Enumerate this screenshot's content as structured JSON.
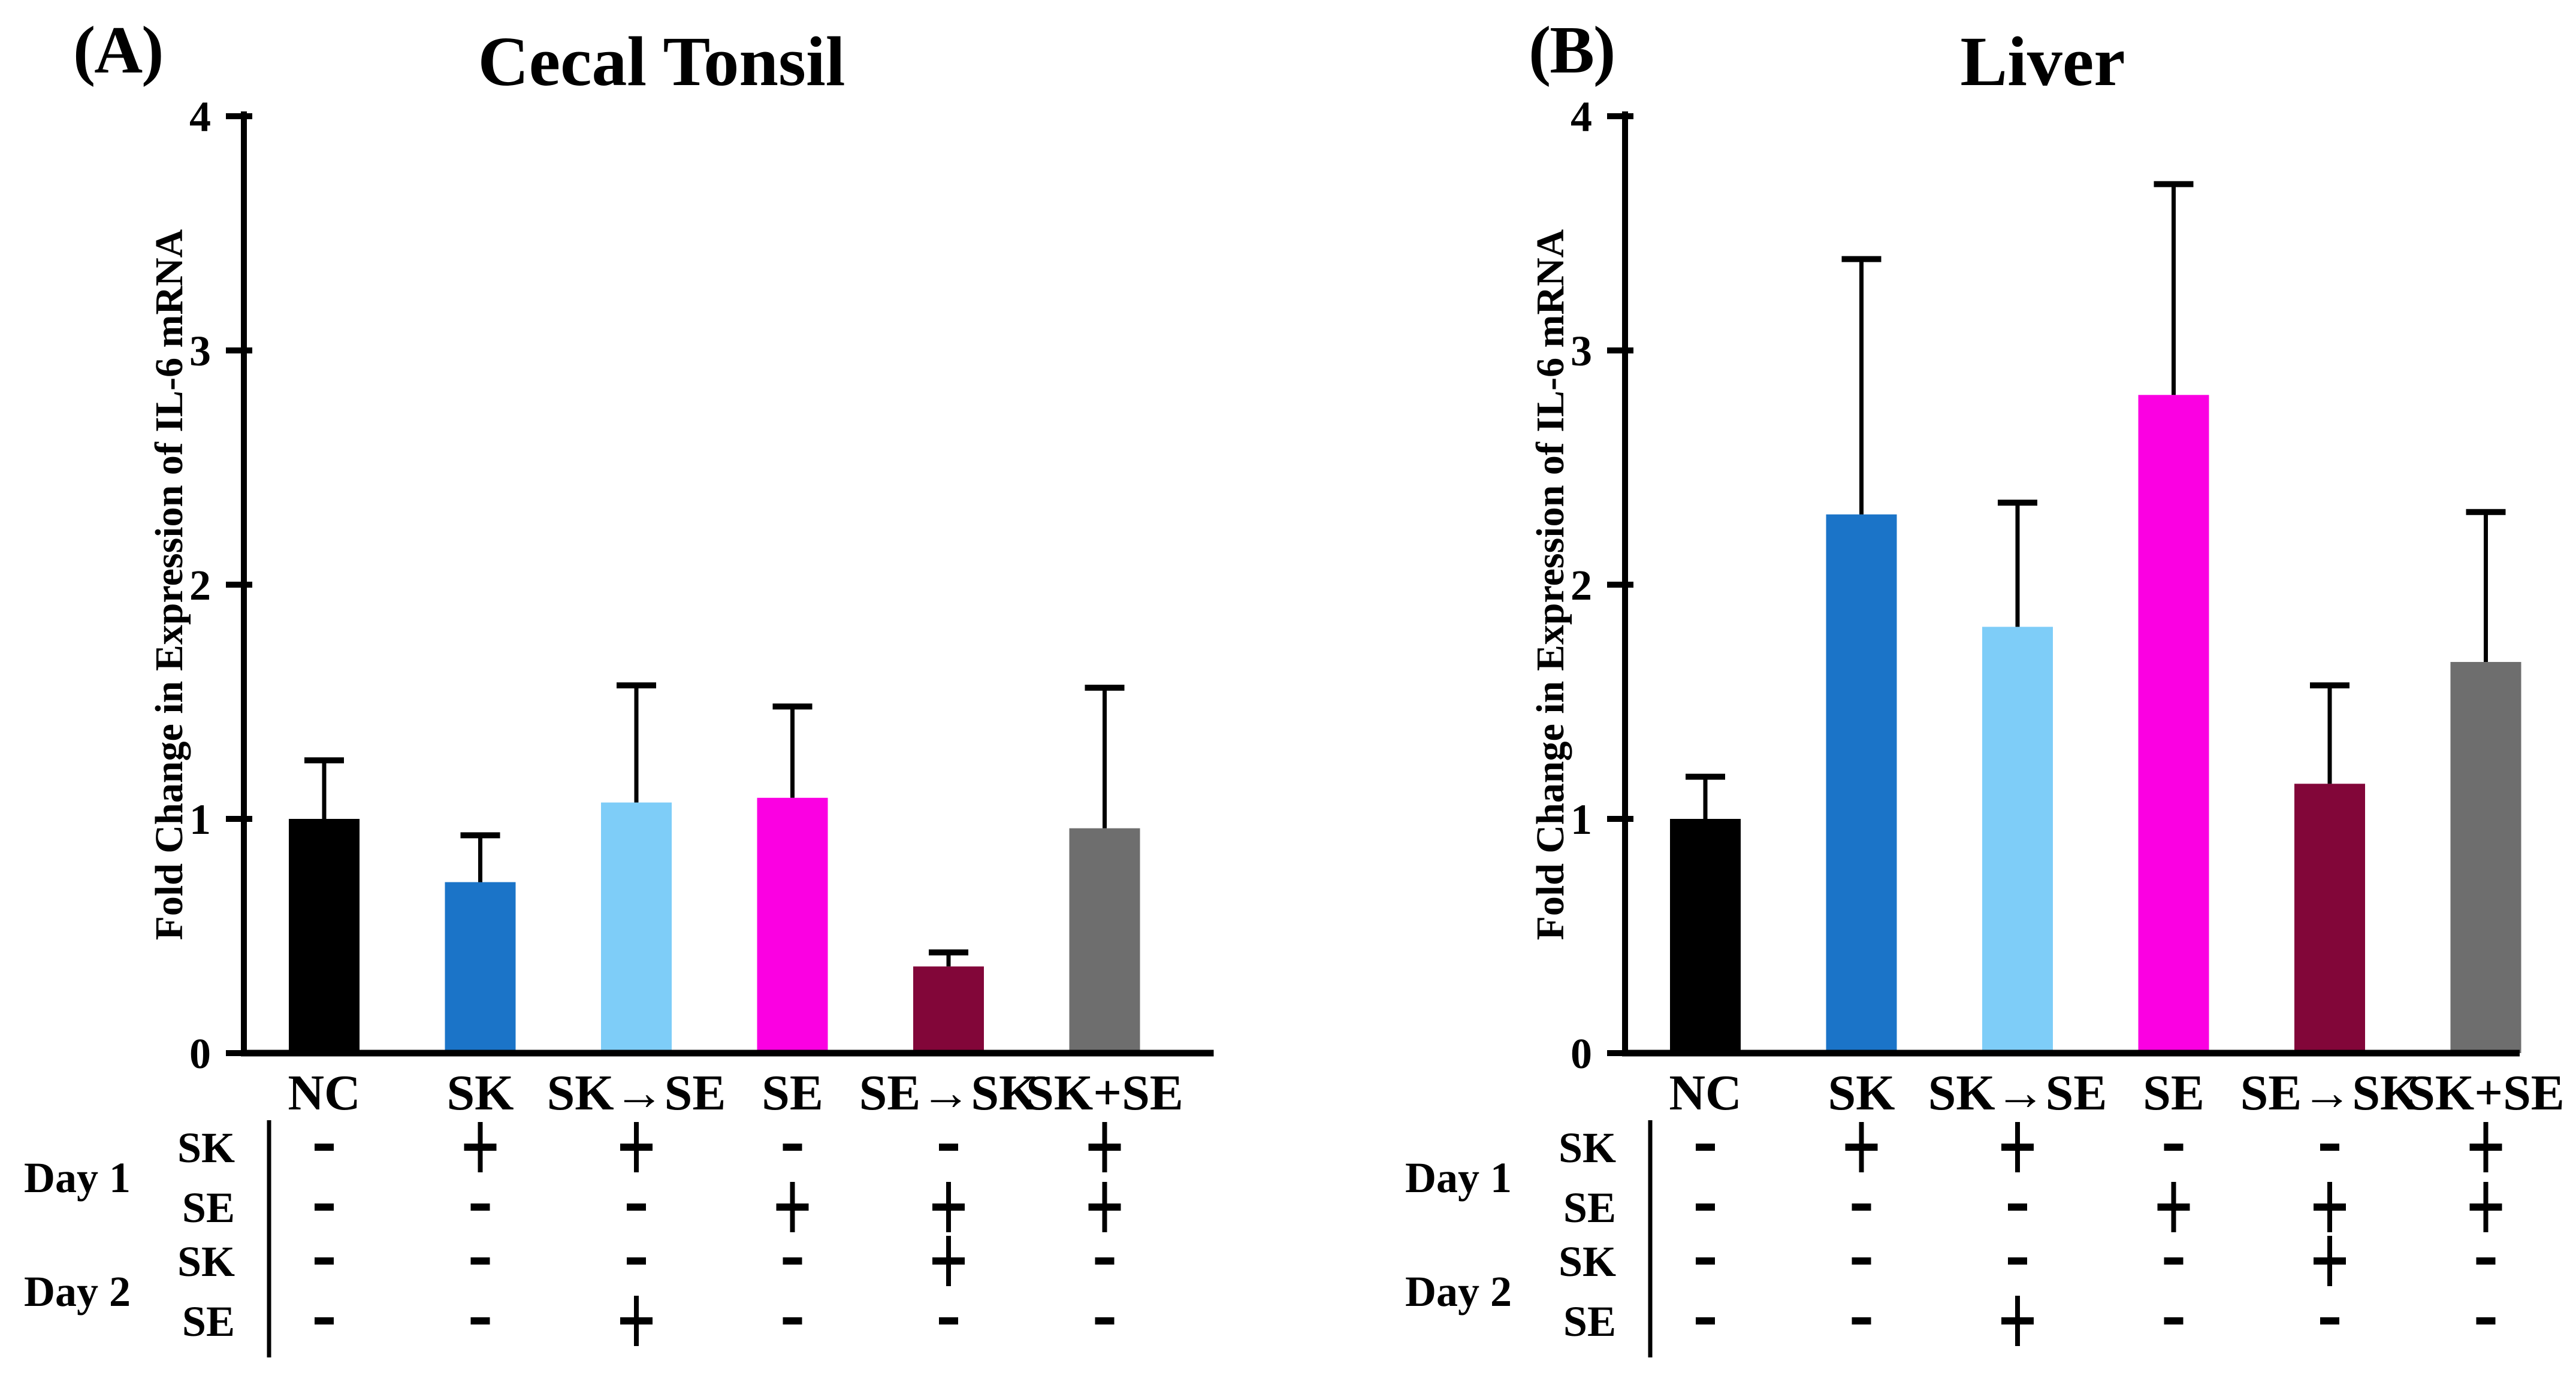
{
  "figure": {
    "background": "#ffffff",
    "axis_color": "#000000",
    "error_bar_color": "#000000"
  },
  "chart_data": [
    {
      "type": "bar",
      "panel_label": "(A)",
      "title": "Cecal Tonsil",
      "xlabel": "",
      "ylabel": "Fold Change in Expression of IL-6 mRNA",
      "ylim": [
        0,
        4
      ],
      "yticks": [
        0,
        1,
        2,
        3,
        4
      ],
      "grid": false,
      "legend": "none",
      "categories": [
        "NC",
        "SK",
        "SK→SE",
        "SE",
        "SE→SK",
        "SK+SE"
      ],
      "values": [
        1.0,
        0.73,
        1.07,
        1.09,
        0.37,
        0.96
      ],
      "errors_upper": [
        0.25,
        0.2,
        0.5,
        0.39,
        0.06,
        0.6
      ],
      "bar_colors": [
        "#000000",
        "#1B74C8",
        "#7ECDF8",
        "#FB00E2",
        "#820639",
        "#6E6E6E"
      ],
      "treatment_table": {
        "day_groups": [
          {
            "label": "Day 1",
            "rows": [
              {
                "label": "SK",
                "cells": [
                  "-",
                  "+",
                  "+",
                  "-",
                  "-",
                  "+"
                ]
              },
              {
                "label": "SE",
                "cells": [
                  "-",
                  "-",
                  "-",
                  "+",
                  "+",
                  "+"
                ]
              }
            ]
          },
          {
            "label": "Day 2",
            "rows": [
              {
                "label": "SK",
                "cells": [
                  "-",
                  "-",
                  "-",
                  "-",
                  "+",
                  "-"
                ]
              },
              {
                "label": "SE",
                "cells": [
                  "-",
                  "-",
                  "+",
                  "-",
                  "-",
                  "-"
                ]
              }
            ]
          }
        ]
      }
    },
    {
      "type": "bar",
      "panel_label": "(B)",
      "title": "Liver",
      "xlabel": "",
      "ylabel": "Fold Change in Expression of IL-6 mRNA",
      "ylim": [
        0,
        4
      ],
      "yticks": [
        0,
        1,
        2,
        3,
        4
      ],
      "grid": false,
      "legend": "none",
      "categories": [
        "NC",
        "SK",
        "SK→SE",
        "SE",
        "SE→SK",
        "SK+SE"
      ],
      "values": [
        1.0,
        2.3,
        1.82,
        2.81,
        1.15,
        1.67
      ],
      "errors_upper": [
        0.18,
        1.09,
        0.53,
        0.9,
        0.42,
        0.64
      ],
      "bar_colors": [
        "#000000",
        "#1B74C8",
        "#7ECDF8",
        "#FB00E2",
        "#820639",
        "#6E6E6E"
      ],
      "treatment_table": {
        "day_groups": [
          {
            "label": "Day 1",
            "rows": [
              {
                "label": "SK",
                "cells": [
                  "-",
                  "+",
                  "+",
                  "-",
                  "-",
                  "+"
                ]
              },
              {
                "label": "SE",
                "cells": [
                  "-",
                  "-",
                  "-",
                  "+",
                  "+",
                  "+"
                ]
              }
            ]
          },
          {
            "label": "Day 2",
            "rows": [
              {
                "label": "SK",
                "cells": [
                  "-",
                  "-",
                  "-",
                  "-",
                  "+",
                  "-"
                ]
              },
              {
                "label": "SE",
                "cells": [
                  "-",
                  "-",
                  "+",
                  "-",
                  "-",
                  "-"
                ]
              }
            ]
          }
        ]
      }
    }
  ]
}
